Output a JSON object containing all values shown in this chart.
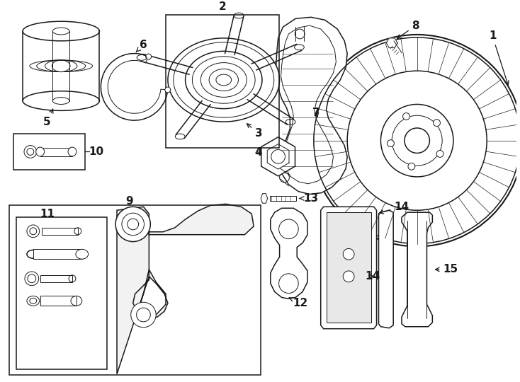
{
  "bg": "#ffffff",
  "lc": "#1a1a1a",
  "lw_thin": 0.7,
  "lw_med": 1.1,
  "lw_thick": 1.5,
  "fs": 11,
  "fw": "bold"
}
